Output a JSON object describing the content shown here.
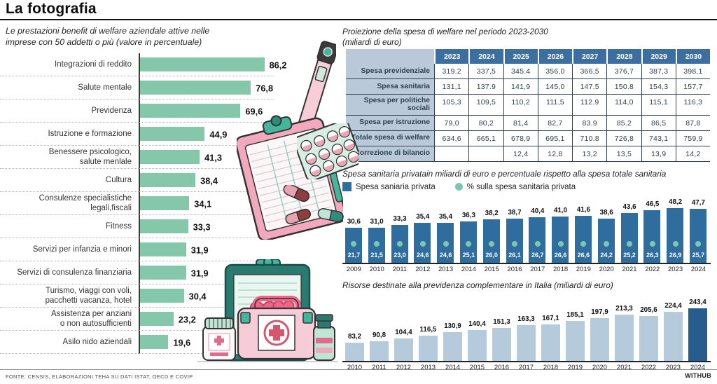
{
  "page": {
    "title": "La fotografia"
  },
  "footer": {
    "source": "FONTE: CENSIS, ELABORAZIONI TEHA SU DATI ISTAT, OECD E COVIP",
    "brand": "WITHUB"
  },
  "colors": {
    "mint_bar": "#85c7ab",
    "steel_blue_bar": "#2e6d9e",
    "teal_dot": "#7cc7b2",
    "light_blue_bar": "#b5cbdb",
    "dark_blue_bar": "#275d8d",
    "table_header_bg": "#3c6e9f",
    "table_label_bg": "#b9c9d9",
    "table_text": "#2e4154"
  },
  "chart_data": [
    {
      "id": "benefit_welfare",
      "type": "bar",
      "orientation": "horizontal",
      "title": "Le prestazioni benefit di welfare aziendale attive nelle imprese con 50 addetti o più (valore in percentuale)",
      "categories": [
        "Integrazioni di reddito",
        "Salute mentale",
        "Previdenza",
        "Istruzione e formazione",
        "Benessere psicologico,\nsalute menlale",
        "Cultura",
        "Consulenze specialistiche\nlegali,fiscali",
        "Fitness",
        "Servizi per infanzia e minori",
        "Servizi di consulenza finanziaria",
        "Turismo, viaggi con voli,\npacchetti vacanza, hotel",
        "Assistenza per anziani\no non autosufficienti",
        "Asilo nido aziendali"
      ],
      "values": [
        86.2,
        76.8,
        69.6,
        44.9,
        41.3,
        38.4,
        34.1,
        33.3,
        31.9,
        31.9,
        30.4,
        23.2,
        19.6
      ],
      "labels": [
        "86,2",
        "76,8",
        "69,6",
        "44,9",
        "41,3",
        "38,4",
        "34,1",
        "33,3",
        "31,9",
        "31,9",
        "30,4",
        "23,2",
        "19,6"
      ],
      "xlim": [
        0,
        100
      ],
      "grid": false
    },
    {
      "id": "welfare_projection",
      "type": "table",
      "title": "Proiezione della spesa di welfare nel periodo 2023-2030",
      "subtitle": "(miliardi di euro)",
      "columns": [
        "2023",
        "2024",
        "2025",
        "2026",
        "2027",
        "2028",
        "2029",
        "2030"
      ],
      "rows": [
        {
          "label": "Spesa previdenziale",
          "values": [
            "319.2",
            "337,5",
            "345.4",
            "356,0",
            "366,5",
            "376,7",
            "387,3",
            "398,1"
          ]
        },
        {
          "label": "Spesa sanitaria",
          "values": [
            "131,1",
            "137.9",
            "141,9",
            "145,0",
            "147.5",
            "150.8",
            "154,3",
            "157,7"
          ]
        },
        {
          "label": "Spesa per politiche sociali",
          "values": [
            "105,3",
            "109,5",
            "110,2",
            "111,5",
            "112.9",
            "114,0",
            "115,1",
            "116,3"
          ]
        },
        {
          "label": "Spesa per istruzione",
          "values": [
            "79,0",
            "80,2",
            "81,4",
            "82,7",
            "83.9",
            "85.2",
            "86,5",
            "87,8"
          ]
        },
        {
          "label": "Totale spesa di welfare",
          "values": [
            "634,6",
            "665,1",
            "678,9",
            "695,1",
            "710.8",
            "726,8",
            "743,1",
            "759,9"
          ]
        },
        {
          "label": "Correzione di bilancio",
          "values": [
            "",
            "",
            "12,4",
            "12,8",
            "13,2",
            "13,5",
            "13,9",
            "14,2"
          ]
        }
      ]
    },
    {
      "id": "spesa_sanitaria_privata",
      "type": "bar",
      "title": "Spesa sanitaria privatain miliardi di euro e percentuale rispetto alla spesa totale sanitaria",
      "categories": [
        "2009",
        "2010",
        "2011",
        "2012",
        "2013",
        "2014",
        "2015",
        "2016",
        "2017",
        "2018",
        "2019",
        "2020",
        "2021",
        "2022",
        "2023",
        "2024"
      ],
      "legend_position": "top",
      "series": [
        {
          "name": "Spesa saniaria privata",
          "mark": "bar",
          "values": [
            30.6,
            31.0,
            33.3,
            35.4,
            35.4,
            36.3,
            38.2,
            38.7,
            40.4,
            41.0,
            41.6,
            38.6,
            43.6,
            46.5,
            48.2,
            47.7
          ],
          "labels": [
            "30,6",
            "31,0",
            "33,3",
            "35,4",
            "35,4",
            "36,3",
            "38,2",
            "38,7",
            "40,4",
            "41,0",
            "41,6",
            "38,6",
            "43,6",
            "46,5",
            "48,2",
            "47,7"
          ]
        },
        {
          "name": "% sulla spesa sanitaria privata",
          "mark": "point",
          "values": [
            21.7,
            21.5,
            23.0,
            24.6,
            24.6,
            25.1,
            26.0,
            26.1,
            26.7,
            26.6,
            26.6,
            24.2,
            25.2,
            26.3,
            26.9,
            25.7
          ],
          "labels": [
            "21,7",
            "21,5",
            "23,0",
            "24,6",
            "24,6",
            "25,1",
            "26,0",
            "26,1",
            "26,7",
            "26,6",
            "26,6",
            "24,2",
            "25,2",
            "26,3",
            "26,9",
            "25,7"
          ]
        }
      ]
    },
    {
      "id": "previdenza_complementare",
      "type": "bar",
      "title": "Risorse destinate alla previdenza complementare in Italia (miliardi di euro)",
      "categories": [
        "2010",
        "2011",
        "2012",
        "2013",
        "2014",
        "2015",
        "2016",
        "2017",
        "2018",
        "2019",
        "2020",
        "2021",
        "2022",
        "2023",
        "2024"
      ],
      "values": [
        83.2,
        90.8,
        104.4,
        116.5,
        130.9,
        140.4,
        151.3,
        163.3,
        167.1,
        185.1,
        197.9,
        213.3,
        205.6,
        224.4,
        243.4
      ],
      "labels": [
        "83,2",
        "90,8",
        "104,4",
        "116,5",
        "130,9",
        "140,4",
        "151,3",
        "163,3",
        "167,1",
        "185,1",
        "197,9",
        "213,3",
        "205,6",
        "224,4",
        "243,4"
      ],
      "highlight_index": 14
    }
  ]
}
